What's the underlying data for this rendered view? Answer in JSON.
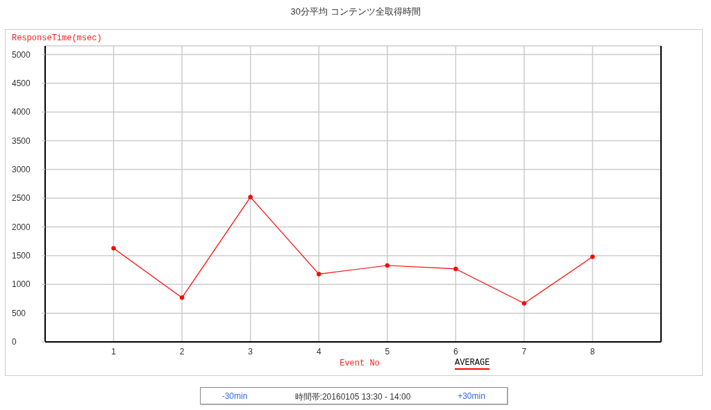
{
  "chart_data": {
    "type": "line",
    "title": "30分平均 コンテンツ全取得時間",
    "xlabel": "Event No",
    "ylabel": "ResponseTime(msec)",
    "x": [
      1,
      2,
      3,
      4,
      5,
      6,
      7,
      8
    ],
    "series": [
      {
        "name": "AVERAGE",
        "color": "#ff0000",
        "values": [
          1630,
          770,
          2520,
          1180,
          1330,
          1270,
          670,
          1480
        ]
      }
    ],
    "xlim": [
      0,
      9
    ],
    "xticks": [
      1,
      2,
      3,
      4,
      5,
      6,
      7,
      8
    ],
    "ylim": [
      0,
      5150
    ],
    "yticks": [
      0,
      500,
      1000,
      1500,
      2000,
      2500,
      3000,
      3500,
      4000,
      4500,
      5000
    ],
    "grid": true,
    "legend": "bottom",
    "marker": "circle",
    "line_style": "solid",
    "annotations": [
      "-30min",
      "時間帯:20160105 13:30 - 14:00",
      "+30min"
    ]
  }
}
